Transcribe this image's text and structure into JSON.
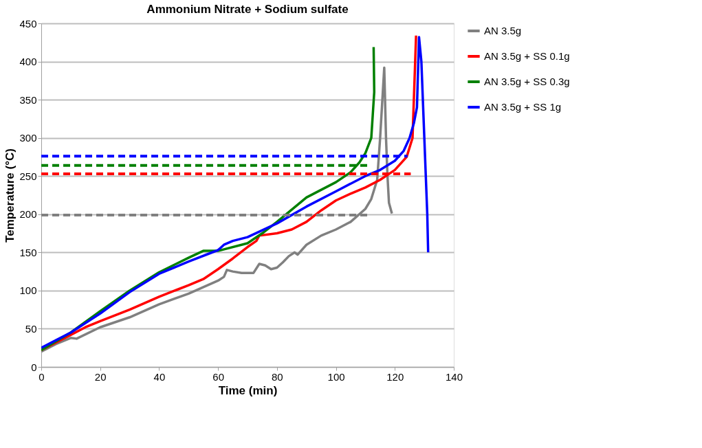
{
  "chart_data": {
    "type": "line",
    "title": "Ammonium Nitrate + Sodium sulfate",
    "xlabel": "Time (min)",
    "ylabel": "Temperature (°C)",
    "xlim": [
      0,
      140
    ],
    "xticks": [
      0,
      20,
      40,
      60,
      80,
      100,
      120,
      140
    ],
    "ylim": [
      0,
      450
    ],
    "yticks": [
      0,
      50,
      100,
      150,
      200,
      250,
      300,
      350,
      400,
      450
    ],
    "grid": "y",
    "legend": "right",
    "marker": "none",
    "series": [
      {
        "name": "AN 3.5g",
        "color": "#808080",
        "line_style": "solid",
        "x": [
          0,
          5,
          10,
          12,
          20,
          30,
          40,
          50,
          60,
          62,
          63,
          65,
          68,
          72,
          74,
          76,
          78,
          80,
          82,
          84,
          86,
          87,
          90,
          95,
          100,
          105,
          110,
          112,
          114,
          115,
          116.4,
          117,
          117.5,
          118,
          119
        ],
        "values": [
          20,
          30,
          38,
          37,
          52,
          65,
          82,
          96,
          113,
          118,
          127,
          125,
          123,
          123,
          135,
          133,
          128,
          130,
          137,
          145,
          150,
          147,
          160,
          172,
          180,
          190,
          207,
          220,
          245,
          300,
          392,
          300,
          250,
          215,
          201
        ]
      },
      {
        "name": "AN 3.5g + SS 0.1g",
        "color": "#ff0000",
        "line_style": "solid",
        "x": [
          0,
          5,
          10,
          15,
          20,
          30,
          40,
          50,
          55,
          60,
          65,
          70,
          73,
          74,
          80,
          85,
          90,
          95,
          100,
          105,
          110,
          115,
          120,
          124,
          126,
          127.2
        ],
        "values": [
          22,
          32,
          42,
          52,
          60,
          75,
          92,
          107,
          115,
          128,
          142,
          157,
          165,
          172,
          175,
          180,
          190,
          205,
          218,
          227,
          235,
          245,
          258,
          275,
          300,
          434
        ]
      },
      {
        "name": "AN 3.5g + SS 0.3g",
        "color": "#008000",
        "line_style": "solid",
        "x": [
          0,
          10,
          20,
          30,
          40,
          50,
          55,
          60,
          70,
          75,
          80,
          90,
          100,
          105,
          108,
          110,
          112,
          112.5,
          113,
          112.8
        ],
        "values": [
          22,
          45,
          73,
          100,
          124,
          143,
          152,
          152,
          162,
          175,
          190,
          222,
          242,
          255,
          268,
          280,
          300,
          330,
          360,
          419
        ]
      },
      {
        "name": "AN 3.5g + SS 1g",
        "color": "#0000ff",
        "line_style": "solid",
        "x": [
          0,
          5,
          10,
          20,
          30,
          40,
          50,
          60,
          62,
          65,
          70,
          80,
          90,
          100,
          110,
          115,
          120,
          123,
          125,
          126.5,
          127.5,
          128.2,
          129,
          130,
          131,
          131.3
        ],
        "values": [
          25,
          35,
          45,
          70,
          98,
          122,
          138,
          153,
          160,
          165,
          170,
          188,
          210,
          230,
          250,
          258,
          270,
          283,
          300,
          320,
          340,
          432,
          400,
          300,
          200,
          150
        ]
      },
      {
        "color": "#808080",
        "line_style": "dashed",
        "x": [
          0,
          112
        ],
        "values": [
          199,
          199
        ]
      },
      {
        "color": "#ff0000",
        "line_style": "dashed",
        "x": [
          0,
          125.4
        ],
        "values": [
          253,
          253
        ]
      },
      {
        "color": "#008000",
        "line_style": "dashed",
        "x": [
          0,
          111
        ],
        "values": [
          264,
          264
        ]
      },
      {
        "color": "#0000ff",
        "line_style": "dashed",
        "x": [
          0,
          124.3
        ],
        "values": [
          276,
          276
        ]
      }
    ]
  }
}
